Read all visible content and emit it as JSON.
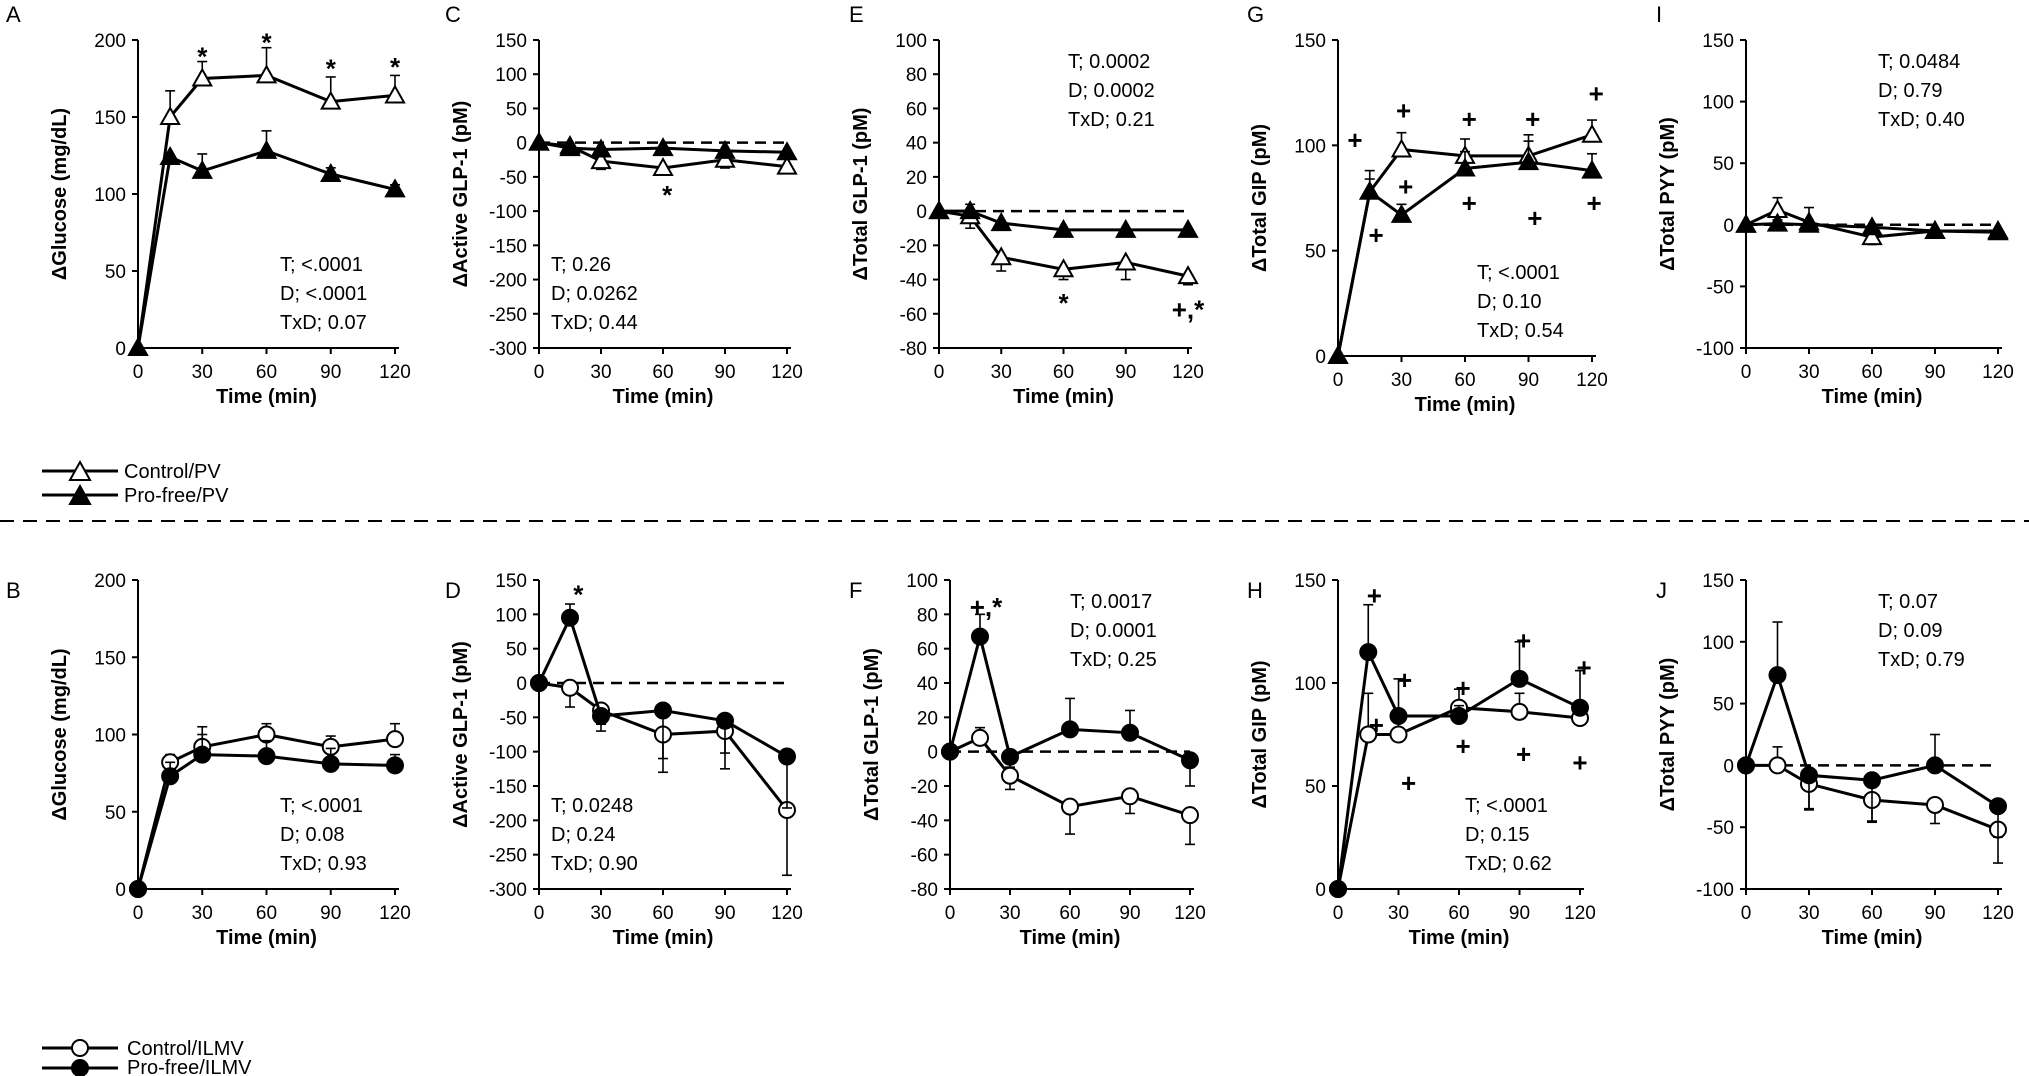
{
  "chart_data": [
    {
      "id": "A",
      "type": "line",
      "panel_label": "A",
      "ylabel": "ΔGlucose (mg/dL)",
      "xlabel": "Time (min)",
      "ylim": [
        0,
        200
      ],
      "yticks": [
        0,
        50,
        100,
        150,
        200
      ],
      "x": [
        0,
        15,
        30,
        60,
        90,
        120
      ],
      "xticks": [
        0,
        30,
        60,
        90,
        120
      ],
      "stats": [
        "T; <.0001",
        "D; <.0001",
        "TxD; 0.07"
      ],
      "stats_pos": "bottom-right",
      "reference_line": null,
      "series": [
        {
          "name": "Control/PV",
          "marker": "open-triangle",
          "values": [
            0,
            150,
            175,
            177,
            160,
            164
          ],
          "errors": [
            0,
            17,
            11,
            18,
            16,
            13
          ]
        },
        {
          "name": "Pro-free/PV",
          "marker": "filled-triangle",
          "values": [
            0,
            124,
            115,
            128,
            113,
            103
          ],
          "errors": [
            0,
            0,
            11,
            13,
            4,
            3
          ]
        }
      ],
      "annotations": [
        {
          "x": 30,
          "y": 190,
          "text": "*"
        },
        {
          "x": 60,
          "y": 199,
          "text": "*"
        },
        {
          "x": 90,
          "y": 182,
          "text": "*"
        },
        {
          "x": 120,
          "y": 183,
          "text": "*"
        }
      ]
    },
    {
      "id": "C",
      "type": "line",
      "panel_label": "C",
      "ylabel": "ΔActive GLP-1 (pM)",
      "xlabel": "Time (min)",
      "ylim": [
        -300,
        150
      ],
      "yticks": [
        -300,
        -250,
        -200,
        -150,
        -100,
        -50,
        0,
        50,
        100,
        150
      ],
      "x": [
        0,
        15,
        30,
        60,
        90,
        120
      ],
      "xticks": [
        0,
        30,
        60,
        90,
        120
      ],
      "stats": [
        "T; 0.26",
        "D; 0.0262",
        "TxD; 0.44"
      ],
      "stats_pos": "bottom-left",
      "reference_line": 0,
      "series": [
        {
          "name": "Control/PV",
          "marker": "open-triangle",
          "values": [
            0,
            -5,
            -27,
            -37,
            -25,
            -35
          ],
          "errors": [
            0,
            6,
            12,
            10,
            12,
            10
          ]
        },
        {
          "name": "Pro-free/PV",
          "marker": "filled-triangle",
          "values": [
            0,
            -8,
            -10,
            -8,
            -12,
            -14
          ],
          "errors": [
            0,
            4,
            4,
            5,
            5,
            5
          ]
        }
      ],
      "annotations": [
        {
          "x": 62,
          "y": -75,
          "text": "*"
        }
      ]
    },
    {
      "id": "E",
      "type": "line",
      "panel_label": "E",
      "ylabel": "ΔTotal GLP-1 (pM)",
      "xlabel": "Time (min)",
      "ylim": [
        -80,
        100
      ],
      "yticks": [
        -80,
        -60,
        -40,
        -20,
        0,
        20,
        40,
        60,
        80,
        100
      ],
      "x": [
        0,
        15,
        30,
        60,
        90,
        120
      ],
      "xticks": [
        0,
        30,
        60,
        90,
        120
      ],
      "stats": [
        "T; 0.0002",
        "D; 0.0002",
        "TxD; 0.21"
      ],
      "stats_pos": "top-right",
      "reference_line": 0,
      "series": [
        {
          "name": "Control/PV",
          "marker": "open-triangle",
          "values": [
            0,
            -3,
            -27,
            -34,
            -30,
            -38
          ],
          "errors": [
            0,
            7,
            8,
            6,
            10,
            5
          ]
        },
        {
          "name": "Pro-free/PV",
          "marker": "filled-triangle",
          "values": [
            0,
            0,
            -7,
            -11,
            -11,
            -11
          ],
          "errors": [
            0,
            4,
            3,
            3,
            3,
            3
          ]
        }
      ],
      "annotations": [
        {
          "x": 60,
          "y": -53,
          "text": "*"
        },
        {
          "x": 120,
          "y": -57,
          "text": "+,*"
        }
      ]
    },
    {
      "id": "G",
      "type": "line",
      "panel_label": "G",
      "ylabel": "ΔTotal GIP (pM)",
      "xlabel": "Time (min)",
      "ylim": [
        0,
        150
      ],
      "yticks": [
        0,
        50,
        100,
        150
      ],
      "x": [
        0,
        15,
        30,
        60,
        90,
        120
      ],
      "xticks": [
        0,
        30,
        60,
        90,
        120
      ],
      "stats": [
        "T; <.0001",
        "D; 0.10",
        "TxD; 0.54"
      ],
      "stats_pos": "bottom-right",
      "reference_line": null,
      "series": [
        {
          "name": "Control/PV",
          "marker": "open-triangle",
          "values": [
            0,
            78,
            98,
            95,
            95,
            105
          ],
          "errors": [
            0,
            6,
            8,
            8,
            10,
            7
          ]
        },
        {
          "name": "Pro-free/PV",
          "marker": "filled-triangle",
          "values": [
            0,
            78,
            67,
            89,
            92,
            88
          ],
          "errors": [
            0,
            10,
            5,
            8,
            10,
            8
          ]
        }
      ],
      "annotations": [
        {
          "x": 8,
          "y": 103,
          "text": "+"
        },
        {
          "x": 18,
          "y": 58,
          "text": "+"
        },
        {
          "x": 31,
          "y": 117,
          "text": "+"
        },
        {
          "x": 32,
          "y": 81,
          "text": "+"
        },
        {
          "x": 62,
          "y": 113,
          "text": "+"
        },
        {
          "x": 62,
          "y": 73,
          "text": "+"
        },
        {
          "x": 92,
          "y": 113,
          "text": "+"
        },
        {
          "x": 93,
          "y": 66,
          "text": "+"
        },
        {
          "x": 122,
          "y": 125,
          "text": "+"
        },
        {
          "x": 121,
          "y": 73,
          "text": "+"
        }
      ]
    },
    {
      "id": "I",
      "type": "line",
      "panel_label": "I",
      "ylabel": "ΔTotal PYY (pM)",
      "xlabel": "Time (min)",
      "ylim": [
        -100,
        150
      ],
      "yticks": [
        -100,
        -50,
        0,
        50,
        100,
        150
      ],
      "x": [
        0,
        15,
        30,
        60,
        90,
        120
      ],
      "xticks": [
        0,
        30,
        60,
        90,
        120
      ],
      "stats": [
        "T; 0.0484",
        "D; 0.79",
        "TxD; 0.40"
      ],
      "stats_pos": "top-right",
      "reference_line": 0,
      "series": [
        {
          "name": "Control/PV",
          "marker": "open-triangle",
          "values": [
            0,
            12,
            2,
            -10,
            -5,
            -5
          ],
          "errors": [
            0,
            10,
            12,
            6,
            4,
            3
          ]
        },
        {
          "name": "Pro-free/PV",
          "marker": "filled-triangle",
          "values": [
            0,
            1,
            0,
            -2,
            -5,
            -6
          ],
          "errors": [
            0,
            3,
            3,
            3,
            3,
            3
          ]
        }
      ],
      "annotations": []
    },
    {
      "id": "B",
      "type": "line",
      "panel_label": "B",
      "ylabel": "ΔGlucose (mg/dL)",
      "xlabel": "Time (min)",
      "ylim": [
        0,
        200
      ],
      "yticks": [
        0,
        50,
        100,
        150,
        200
      ],
      "x": [
        0,
        15,
        30,
        60,
        90,
        120
      ],
      "xticks": [
        0,
        30,
        60,
        90,
        120
      ],
      "stats": [
        "T; <.0001",
        "D; 0.08",
        "TxD; 0.93"
      ],
      "stats_pos": "bottom-right",
      "reference_line": null,
      "series": [
        {
          "name": "Control/ILMV",
          "marker": "open-circle",
          "values": [
            0,
            82,
            92,
            100,
            92,
            97
          ],
          "errors": [
            0,
            5,
            8,
            7,
            7,
            10
          ]
        },
        {
          "name": "Pro-free/ILMV",
          "marker": "filled-circle",
          "values": [
            0,
            73,
            87,
            86,
            81,
            80
          ],
          "errors": [
            0,
            9,
            18,
            10,
            10,
            7
          ]
        }
      ],
      "annotations": []
    },
    {
      "id": "D",
      "type": "line",
      "panel_label": "D",
      "ylabel": "ΔActive GLP-1 (pM)",
      "xlabel": "Time (min)",
      "ylim": [
        -300,
        150
      ],
      "yticks": [
        -300,
        -250,
        -200,
        -150,
        -100,
        -50,
        0,
        50,
        100,
        150
      ],
      "x": [
        0,
        15,
        30,
        60,
        90,
        120
      ],
      "xticks": [
        0,
        30,
        60,
        90,
        120
      ],
      "stats": [
        "T; 0.0248",
        "D; 0.24",
        "TxD; 0.90"
      ],
      "stats_pos": "bottom-left",
      "reference_line": 0,
      "series": [
        {
          "name": "Control/ILMV",
          "marker": "open-circle",
          "values": [
            0,
            -7,
            -40,
            -75,
            -70,
            -185
          ],
          "errors": [
            0,
            28,
            20,
            55,
            32,
            95
          ]
        },
        {
          "name": "Pro-free/ILMV",
          "marker": "filled-circle",
          "values": [
            0,
            95,
            -48,
            -40,
            -55,
            -107
          ],
          "errors": [
            0,
            20,
            22,
            70,
            70,
            75
          ]
        }
      ],
      "annotations": [
        {
          "x": 19,
          "y": 130,
          "text": "*"
        }
      ]
    },
    {
      "id": "F",
      "type": "line",
      "panel_label": "F",
      "ylabel": "ΔTotal GLP-1 (pM)",
      "xlabel": "Time (min)",
      "ylim": [
        -80,
        100
      ],
      "yticks": [
        -80,
        -60,
        -40,
        -20,
        0,
        20,
        40,
        60,
        80,
        100
      ],
      "x": [
        0,
        15,
        30,
        60,
        90,
        120
      ],
      "xticks": [
        0,
        30,
        60,
        90,
        120
      ],
      "stats": [
        "T; 0.0017",
        "D; 0.0001",
        "TxD; 0.25"
      ],
      "stats_pos": "top-right",
      "reference_line": 0,
      "series": [
        {
          "name": "Control/ILMV",
          "marker": "open-circle",
          "values": [
            0,
            8,
            -14,
            -32,
            -26,
            -37
          ],
          "errors": [
            0,
            6,
            8,
            16,
            10,
            17
          ]
        },
        {
          "name": "Pro-free/ILMV",
          "marker": "filled-circle",
          "values": [
            0,
            67,
            -3,
            13,
            11,
            -5
          ],
          "errors": [
            0,
            13,
            6,
            18,
            13,
            15
          ]
        }
      ],
      "annotations": [
        {
          "x": 18,
          "y": 85,
          "text": "+,*"
        }
      ]
    },
    {
      "id": "H",
      "type": "line",
      "panel_label": "H",
      "ylabel": "ΔTotal GIP (pM)",
      "xlabel": "Time (min)",
      "ylim": [
        0,
        150
      ],
      "yticks": [
        0,
        50,
        100,
        150
      ],
      "x": [
        0,
        15,
        30,
        60,
        90,
        120
      ],
      "xticks": [
        0,
        30,
        60,
        90,
        120
      ],
      "stats": [
        "T; <.0001",
        "D; 0.15",
        "TxD; 0.62"
      ],
      "stats_pos": "bottom-right",
      "reference_line": null,
      "series": [
        {
          "name": "Control/ILMV",
          "marker": "open-circle",
          "values": [
            0,
            75,
            75,
            88,
            86,
            83
          ],
          "errors": [
            0,
            20,
            10,
            9,
            9,
            8
          ]
        },
        {
          "name": "Pro-free/ILMV",
          "marker": "filled-circle",
          "values": [
            0,
            115,
            84,
            84,
            102,
            88
          ],
          "errors": [
            0,
            23,
            18,
            5,
            18,
            18
          ]
        }
      ],
      "annotations": [
        {
          "x": 18,
          "y": 143,
          "text": "+"
        },
        {
          "x": 19,
          "y": 80,
          "text": "+"
        },
        {
          "x": 33,
          "y": 102,
          "text": "+"
        },
        {
          "x": 35,
          "y": 52,
          "text": "+"
        },
        {
          "x": 62,
          "y": 98,
          "text": "+"
        },
        {
          "x": 62,
          "y": 70,
          "text": "+"
        },
        {
          "x": 92,
          "y": 121,
          "text": "+"
        },
        {
          "x": 92,
          "y": 66,
          "text": "+"
        },
        {
          "x": 122,
          "y": 108,
          "text": "+"
        },
        {
          "x": 120,
          "y": 62,
          "text": "+"
        }
      ]
    },
    {
      "id": "J",
      "type": "line",
      "panel_label": "J",
      "ylabel": "ΔTotal PYY (pM)",
      "xlabel": "Time (min)",
      "ylim": [
        -100,
        150
      ],
      "yticks": [
        -100,
        -50,
        0,
        50,
        100,
        150
      ],
      "x": [
        0,
        15,
        30,
        60,
        90,
        120
      ],
      "xticks": [
        0,
        30,
        60,
        90,
        120
      ],
      "stats": [
        "T; 0.07",
        "D; 0.09",
        "TxD; 0.79"
      ],
      "stats_pos": "top-right",
      "reference_line": 0,
      "series": [
        {
          "name": "Control/ILMV",
          "marker": "open-circle",
          "values": [
            0,
            0,
            -15,
            -28,
            -32,
            -52
          ],
          "errors": [
            0,
            15,
            20,
            18,
            15,
            27
          ]
        },
        {
          "name": "Pro-free/ILMV",
          "marker": "filled-circle",
          "values": [
            0,
            73,
            -8,
            -12,
            0,
            -33
          ],
          "errors": [
            0,
            43,
            28,
            33,
            25,
            25
          ]
        }
      ],
      "annotations": []
    }
  ],
  "legends": {
    "top": [
      {
        "label": "Control/PV",
        "marker": "open-triangle"
      },
      {
        "label": "Pro-free/PV",
        "marker": "filled-triangle"
      }
    ],
    "bottom": [
      {
        "label": "Control/ILMV",
        "marker": "open-circle"
      },
      {
        "label": "Pro-free/ILMV",
        "marker": "filled-circle"
      }
    ]
  },
  "colors": {
    "ink": "#000000",
    "paper": "#ffffff"
  }
}
